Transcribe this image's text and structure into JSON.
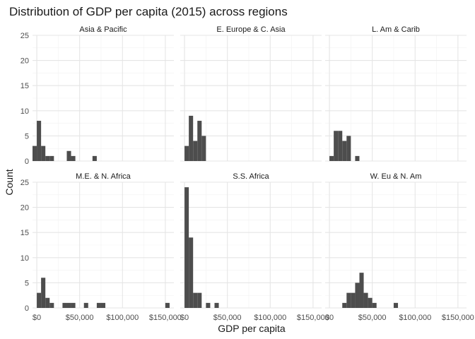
{
  "chart_data": {
    "type": "bar",
    "title": "Distribution of GDP per capita (2015) across regions",
    "xlabel": "GDP per capita",
    "ylabel": "Count",
    "ylim": [
      0,
      25
    ],
    "xlim": [
      -5000,
      160000
    ],
    "bin_width": 5000,
    "y_ticks": [
      0,
      5,
      10,
      15,
      20,
      25
    ],
    "x_ticks": [
      {
        "value": 0,
        "label": "$0"
      },
      {
        "value": 50000,
        "label": "$50,000"
      },
      {
        "value": 100000,
        "label": "$100,000"
      },
      {
        "value": 150000,
        "label": "$150,000"
      }
    ],
    "grid": true,
    "panels": [
      {
        "name": "Asia & Pacific",
        "bins": [
          [
            -2500,
            3
          ],
          [
            2500,
            8
          ],
          [
            7500,
            3
          ],
          [
            12500,
            1
          ],
          [
            17500,
            1
          ],
          [
            37500,
            2
          ],
          [
            42500,
            1
          ],
          [
            67500,
            1
          ]
        ]
      },
      {
        "name": "E. Europe & C. Asia",
        "bins": [
          [
            2500,
            3
          ],
          [
            7500,
            9
          ],
          [
            12500,
            4
          ],
          [
            17500,
            8
          ],
          [
            22500,
            5
          ]
        ]
      },
      {
        "name": "L. Am & Carib",
        "bins": [
          [
            2500,
            1
          ],
          [
            7500,
            6
          ],
          [
            12500,
            6
          ],
          [
            17500,
            4
          ],
          [
            22500,
            5
          ],
          [
            32500,
            1
          ]
        ]
      },
      {
        "name": "M.E. & N. Africa",
        "bins": [
          [
            2500,
            3
          ],
          [
            7500,
            6
          ],
          [
            12500,
            2
          ],
          [
            17500,
            1
          ],
          [
            32500,
            1
          ],
          [
            37500,
            1
          ],
          [
            42500,
            1
          ],
          [
            57500,
            1
          ],
          [
            72500,
            1
          ],
          [
            77500,
            1
          ],
          [
            152500,
            1
          ]
        ]
      },
      {
        "name": "S.S. Africa",
        "bins": [
          [
            2500,
            24
          ],
          [
            7500,
            14
          ],
          [
            12500,
            3
          ],
          [
            17500,
            3
          ],
          [
            27500,
            1
          ],
          [
            37500,
            1
          ]
        ]
      },
      {
        "name": "W. Eu & N. Am",
        "bins": [
          [
            17500,
            1
          ],
          [
            22500,
            3
          ],
          [
            27500,
            3
          ],
          [
            32500,
            5
          ],
          [
            37500,
            7
          ],
          [
            42500,
            3
          ],
          [
            47500,
            2
          ],
          [
            52500,
            1
          ],
          [
            77500,
            1
          ]
        ]
      }
    ]
  }
}
